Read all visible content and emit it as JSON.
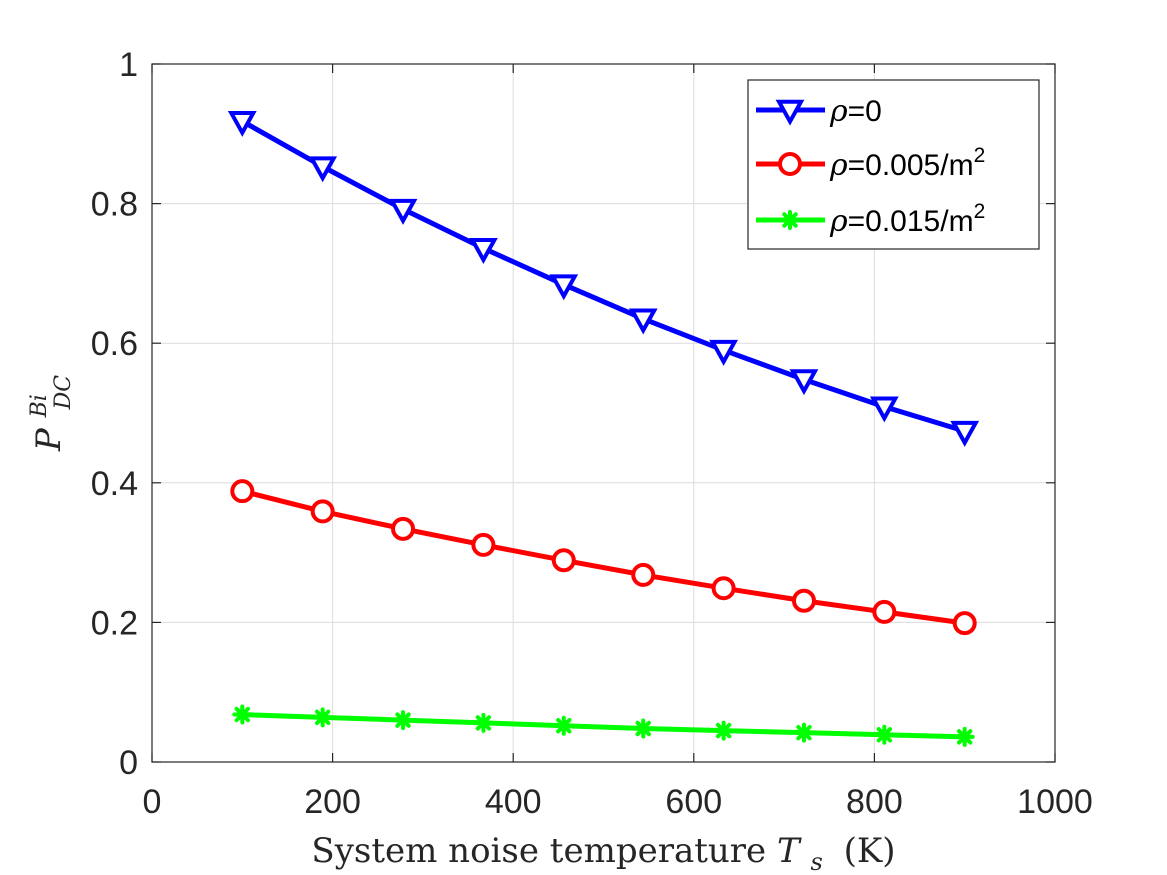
{
  "chart_data": {
    "type": "line",
    "x": [
      100,
      189,
      278,
      367,
      456,
      544,
      633,
      722,
      811,
      900
    ],
    "series": [
      {
        "name": "ρ=0",
        "label_sym": "ρ",
        "label_rest": "=0",
        "label_sup": "",
        "color": "#0000ff",
        "marker": "triangle-down",
        "values": [
          0.918,
          0.853,
          0.792,
          0.736,
          0.684,
          0.635,
          0.59,
          0.548,
          0.509,
          0.474
        ]
      },
      {
        "name": "ρ=0.005/m2",
        "label_sym": "ρ",
        "label_rest": "=0.005/m",
        "label_sup": "2",
        "color": "#ff0000",
        "marker": "circle",
        "values": [
          0.388,
          0.359,
          0.334,
          0.311,
          0.289,
          0.268,
          0.249,
          0.231,
          0.215,
          0.199
        ]
      },
      {
        "name": "ρ=0.015/m2",
        "label_sym": "ρ",
        "label_rest": "=0.015/m",
        "label_sup": "2",
        "color": "#00ff00",
        "marker": "star",
        "values": [
          0.068,
          0.064,
          0.06,
          0.056,
          0.052,
          0.048,
          0.045,
          0.042,
          0.039,
          0.036
        ]
      }
    ],
    "xlabel": "System noise temperature",
    "xlabel_var": "T",
    "xlabel_sub": "s",
    "xlabel_unit": "(K)",
    "ylabel": "P",
    "ylabel_sup": "Bi",
    "ylabel_sub": "DC",
    "xlim": [
      0,
      1000
    ],
    "ylim": [
      0,
      1
    ],
    "xticks": [
      0,
      200,
      400,
      600,
      800,
      1000
    ],
    "xtick_labels": [
      "0",
      "200",
      "400",
      "600",
      "800",
      "1000"
    ],
    "yticks": [
      0,
      0.2,
      0.4,
      0.6,
      0.8,
      1
    ],
    "ytick_labels": [
      "0",
      "0.2",
      "0.4",
      "0.6",
      "0.8",
      "1"
    ],
    "grid": true,
    "legend_position": "top-right"
  }
}
